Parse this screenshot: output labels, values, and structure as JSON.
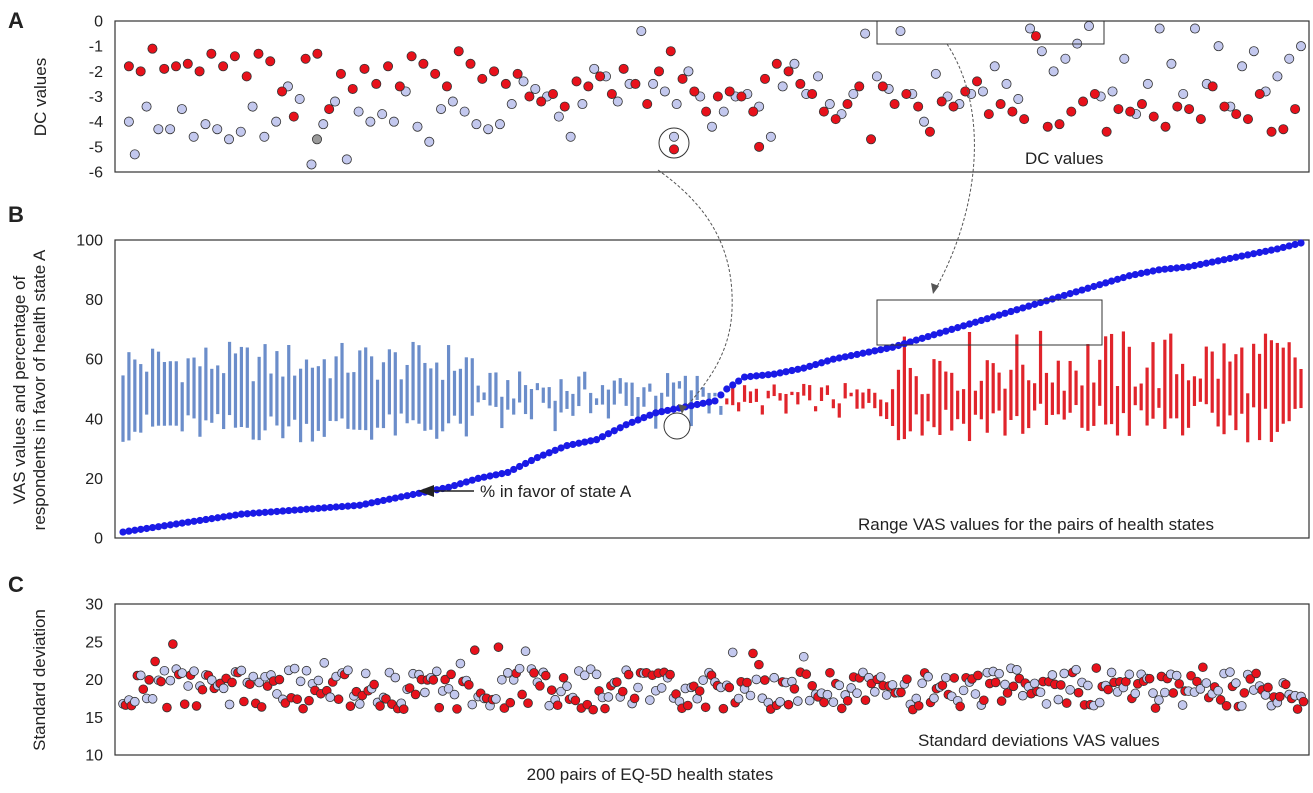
{
  "figure": {
    "x_caption": "200 pairs of EQ-5D health states",
    "colors": {
      "state_a": "#c3c8ee",
      "state_b": "#e8111b",
      "outline": "#333333",
      "vas_bar_a": "#6b8dca",
      "vas_bar_b": "#e0242b",
      "percent_line": "#1a1ae6",
      "missing_point": "#9a9a9a"
    }
  },
  "panel_a": {
    "letter": "A",
    "ylabel": "DC values",
    "yticks": [
      "0",
      "-1",
      "-2",
      "-3",
      "-4",
      "-5",
      "-6"
    ],
    "annotation": "DC values"
  },
  "panel_b": {
    "letter": "B",
    "ylabel": "VAS values and percentage of respondents in favor of health state A",
    "ylabel_lines": [
      "VAS values and percentage of",
      "respondents in favor of health state A"
    ],
    "yticks": [
      "0",
      "20",
      "40",
      "60",
      "80",
      "100"
    ],
    "arrow_label": "% in favor of state A",
    "annotation": "Range VAS values for the pairs of health states"
  },
  "panel_c": {
    "letter": "C",
    "ylabel": "Standard deviation",
    "yticks": [
      "10",
      "15",
      "20",
      "25",
      "30"
    ],
    "annotation": "Standard deviations VAS values"
  },
  "chart_data": [
    {
      "type": "scatter",
      "panel": "A",
      "ylabel": "DC values",
      "ylim": [
        -6,
        0
      ],
      "x_count": 200,
      "series_description": "two DC values per pair (light = state A, red = state B)",
      "sample_points_a": [
        [
          1,
          -4.0
        ],
        [
          2,
          -5.3
        ],
        [
          4,
          -3.4
        ],
        [
          6,
          -4.3
        ],
        [
          8,
          -4.3
        ],
        [
          10,
          -3.5
        ],
        [
          12,
          -4.6
        ],
        [
          14,
          -4.1
        ],
        [
          16,
          -4.3
        ],
        [
          18,
          -4.7
        ],
        [
          20,
          -4.4
        ],
        [
          22,
          -3.4
        ],
        [
          24,
          -4.6
        ],
        [
          26,
          -4.0
        ],
        [
          28,
          -2.6
        ],
        [
          30,
          -3.1
        ],
        [
          32,
          -5.7
        ],
        [
          34,
          -4.1
        ],
        [
          36,
          -3.2
        ],
        [
          38,
          -5.5
        ],
        [
          40,
          -3.6
        ],
        [
          42,
          -4.0
        ],
        [
          44,
          -3.7
        ],
        [
          46,
          -4.0
        ],
        [
          48,
          -2.8
        ],
        [
          50,
          -4.2
        ],
        [
          52,
          -4.8
        ],
        [
          54,
          -3.5
        ],
        [
          56,
          -3.2
        ],
        [
          58,
          -3.6
        ],
        [
          60,
          -4.1
        ],
        [
          62,
          -4.3
        ],
        [
          64,
          -4.1
        ],
        [
          66,
          -3.3
        ],
        [
          68,
          -2.4
        ],
        [
          70,
          -2.7
        ],
        [
          72,
          -3.0
        ],
        [
          74,
          -3.8
        ],
        [
          76,
          -4.6
        ],
        [
          78,
          -3.3
        ],
        [
          80,
          -1.9
        ],
        [
          82,
          -2.2
        ],
        [
          84,
          -3.2
        ],
        [
          86,
          -2.5
        ],
        [
          88,
          -0.4
        ],
        [
          90,
          -2.5
        ],
        [
          92,
          -2.8
        ],
        [
          94,
          -3.3
        ],
        [
          96,
          -2.0
        ],
        [
          98,
          -3.0
        ],
        [
          100,
          -4.2
        ],
        [
          102,
          -3.6
        ],
        [
          104,
          -3.0
        ],
        [
          106,
          -2.9
        ],
        [
          108,
          -3.4
        ],
        [
          110,
          -4.6
        ],
        [
          112,
          -2.6
        ],
        [
          114,
          -1.7
        ],
        [
          116,
          -2.9
        ],
        [
          118,
          -2.2
        ],
        [
          120,
          -3.3
        ],
        [
          122,
          -3.7
        ],
        [
          124,
          -2.9
        ],
        [
          126,
          -0.5
        ],
        [
          128,
          -2.2
        ],
        [
          130,
          -2.7
        ],
        [
          132,
          -0.4
        ],
        [
          134,
          -2.9
        ],
        [
          136,
          -4.0
        ],
        [
          138,
          -2.1
        ],
        [
          140,
          -3.0
        ],
        [
          142,
          -3.3
        ],
        [
          144,
          -2.9
        ],
        [
          146,
          -2.8
        ],
        [
          148,
          -1.8
        ],
        [
          150,
          -2.5
        ],
        [
          152,
          -3.1
        ],
        [
          154,
          -0.3
        ],
        [
          156,
          -1.2
        ],
        [
          158,
          -2.0
        ],
        [
          160,
          -1.5
        ],
        [
          162,
          -0.9
        ],
        [
          164,
          -0.2
        ],
        [
          166,
          -3.0
        ],
        [
          168,
          -2.8
        ],
        [
          170,
          -1.5
        ],
        [
          172,
          -3.7
        ],
        [
          174,
          -2.5
        ],
        [
          176,
          -0.3
        ],
        [
          178,
          -1.7
        ],
        [
          180,
          -2.9
        ],
        [
          182,
          -0.3
        ],
        [
          184,
          -2.5
        ],
        [
          186,
          -1.0
        ],
        [
          188,
          -3.4
        ],
        [
          190,
          -1.8
        ],
        [
          192,
          -1.2
        ],
        [
          194,
          -2.8
        ],
        [
          196,
          -2.2
        ],
        [
          198,
          -1.5
        ],
        [
          200,
          -1.0
        ]
      ],
      "sample_points_b": [
        [
          1,
          -1.8
        ],
        [
          3,
          -2.0
        ],
        [
          5,
          -1.1
        ],
        [
          7,
          -1.9
        ],
        [
          9,
          -1.8
        ],
        [
          11,
          -1.7
        ],
        [
          13,
          -2.0
        ],
        [
          15,
          -1.3
        ],
        [
          17,
          -1.8
        ],
        [
          19,
          -1.4
        ],
        [
          21,
          -2.2
        ],
        [
          23,
          -1.3
        ],
        [
          25,
          -1.6
        ],
        [
          27,
          -2.8
        ],
        [
          29,
          -3.8
        ],
        [
          31,
          -1.5
        ],
        [
          33,
          -1.3
        ],
        [
          35,
          -3.5
        ],
        [
          37,
          -2.1
        ],
        [
          39,
          -2.7
        ],
        [
          41,
          -1.9
        ],
        [
          43,
          -2.5
        ],
        [
          45,
          -1.8
        ],
        [
          47,
          -2.6
        ],
        [
          49,
          -1.4
        ],
        [
          51,
          -1.7
        ],
        [
          53,
          -2.1
        ],
        [
          55,
          -2.6
        ],
        [
          57,
          -1.2
        ],
        [
          59,
          -1.7
        ],
        [
          61,
          -2.3
        ],
        [
          63,
          -2.0
        ],
        [
          65,
          -2.5
        ],
        [
          67,
          -2.1
        ],
        [
          69,
          -3.0
        ],
        [
          71,
          -3.2
        ],
        [
          73,
          -2.9
        ],
        [
          75,
          -3.4
        ],
        [
          77,
          -2.4
        ],
        [
          79,
          -2.6
        ],
        [
          81,
          -2.2
        ],
        [
          83,
          -2.9
        ],
        [
          85,
          -1.9
        ],
        [
          87,
          -2.5
        ],
        [
          89,
          -3.3
        ],
        [
          91,
          -2.0
        ],
        [
          93,
          -1.2
        ],
        [
          95,
          -2.3
        ],
        [
          97,
          -2.8
        ],
        [
          99,
          -3.6
        ],
        [
          101,
          -3.0
        ],
        [
          103,
          -2.8
        ],
        [
          105,
          -3.0
        ],
        [
          107,
          -3.6
        ],
        [
          108,
          -5.0
        ],
        [
          109,
          -2.3
        ],
        [
          111,
          -1.7
        ],
        [
          113,
          -2.0
        ],
        [
          115,
          -2.5
        ],
        [
          117,
          -2.9
        ],
        [
          119,
          -3.6
        ],
        [
          121,
          -3.9
        ],
        [
          123,
          -3.3
        ],
        [
          125,
          -2.6
        ],
        [
          127,
          -4.7
        ],
        [
          129,
          -2.6
        ],
        [
          131,
          -3.3
        ],
        [
          133,
          -2.9
        ],
        [
          135,
          -3.4
        ],
        [
          137,
          -4.4
        ],
        [
          139,
          -3.2
        ],
        [
          141,
          -3.4
        ],
        [
          143,
          -2.8
        ],
        [
          145,
          -2.4
        ],
        [
          147,
          -3.7
        ],
        [
          149,
          -3.3
        ],
        [
          151,
          -3.6
        ],
        [
          153,
          -3.9
        ],
        [
          155,
          -0.6
        ],
        [
          157,
          -4.2
        ],
        [
          159,
          -4.1
        ],
        [
          161,
          -3.6
        ],
        [
          163,
          -3.2
        ],
        [
          165,
          -2.9
        ],
        [
          167,
          -4.4
        ],
        [
          169,
          -3.5
        ],
        [
          171,
          -3.6
        ],
        [
          173,
          -3.3
        ],
        [
          175,
          -3.8
        ],
        [
          177,
          -4.2
        ],
        [
          179,
          -3.4
        ],
        [
          181,
          -3.5
        ],
        [
          183,
          -3.9
        ],
        [
          185,
          -2.6
        ],
        [
          187,
          -3.4
        ],
        [
          189,
          -3.7
        ],
        [
          191,
          -3.9
        ],
        [
          193,
          -2.9
        ],
        [
          195,
          -4.4
        ],
        [
          197,
          -4.3
        ],
        [
          199,
          -3.5
        ]
      ]
    },
    {
      "type": "line",
      "panel": "B",
      "series": [
        {
          "name": "% in favor of state A",
          "values_description": "monotonically increasing from about 2 to 100 across 200 pairs"
        }
      ],
      "ylim": [
        0,
        100
      ],
      "x_count": 200,
      "percent_curve_keypoints": [
        [
          0,
          2
        ],
        [
          10,
          5
        ],
        [
          20,
          8
        ],
        [
          30,
          9.5
        ],
        [
          40,
          11
        ],
        [
          50,
          15
        ],
        [
          55,
          17
        ],
        [
          60,
          20
        ],
        [
          65,
          22
        ],
        [
          70,
          27
        ],
        [
          75,
          31
        ],
        [
          80,
          33
        ],
        [
          85,
          38
        ],
        [
          90,
          42
        ],
        [
          95,
          44
        ],
        [
          100,
          46
        ],
        [
          102,
          50
        ],
        [
          105,
          54
        ],
        [
          110,
          55
        ],
        [
          115,
          57
        ],
        [
          120,
          60
        ],
        [
          125,
          62
        ],
        [
          130,
          64
        ],
        [
          135,
          67
        ],
        [
          140,
          70
        ],
        [
          145,
          73
        ],
        [
          150,
          76
        ],
        [
          155,
          79
        ],
        [
          160,
          82
        ],
        [
          165,
          85
        ],
        [
          170,
          88
        ],
        [
          175,
          90
        ],
        [
          180,
          91
        ],
        [
          185,
          93
        ],
        [
          190,
          95
        ],
        [
          195,
          97
        ],
        [
          199,
          99
        ]
      ]
    },
    {
      "type": "scatter",
      "panel": "C",
      "ylabel": "Standard deviation",
      "ylim": [
        10,
        30
      ],
      "x_count": 200,
      "typical_range": [
        15,
        25
      ],
      "series_description": "two SD values per pair clustered around 18-20"
    }
  ]
}
